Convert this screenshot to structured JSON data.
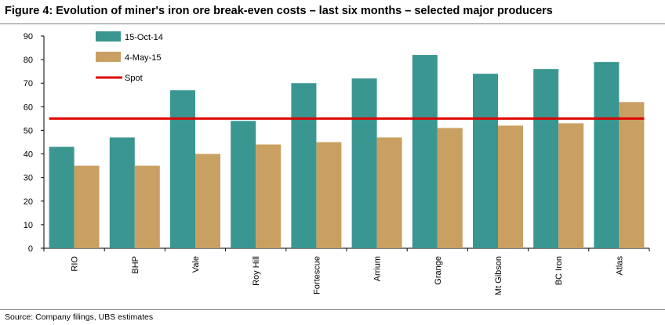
{
  "header": {
    "title": "Figure 4: Evolution of miner's iron ore break-even costs – last six months – selected major producers"
  },
  "footer": {
    "source": "Source:   Company filings, UBS estimates"
  },
  "chart_data": {
    "type": "bar",
    "title": "Figure 4: Evolution of miner's iron ore break-even costs – last six months – selected major producers",
    "xlabel": "",
    "ylabel": "",
    "ylim": [
      0,
      90
    ],
    "yticks": [
      0,
      10,
      20,
      30,
      40,
      50,
      60,
      70,
      80,
      90
    ],
    "categories": [
      "RIO",
      "BHP",
      "Vale",
      "Roy Hill",
      "Fortescue",
      "Arrium",
      "Grange",
      "Mt Gibson",
      "BC Iron",
      "Atlas"
    ],
    "series": [
      {
        "name": "15-Oct-14",
        "color": "#3a9690",
        "values": [
          43,
          47,
          67,
          54,
          70,
          72,
          82,
          74,
          76,
          79
        ]
      },
      {
        "name": "4-May-15",
        "color": "#c9a062",
        "values": [
          35,
          35,
          40,
          44,
          45,
          47,
          51,
          52,
          53,
          62
        ]
      }
    ],
    "reference_line": {
      "name": "Spot",
      "color": "#e00000",
      "value": 55
    },
    "legend_position": "top-left",
    "grid": false
  }
}
